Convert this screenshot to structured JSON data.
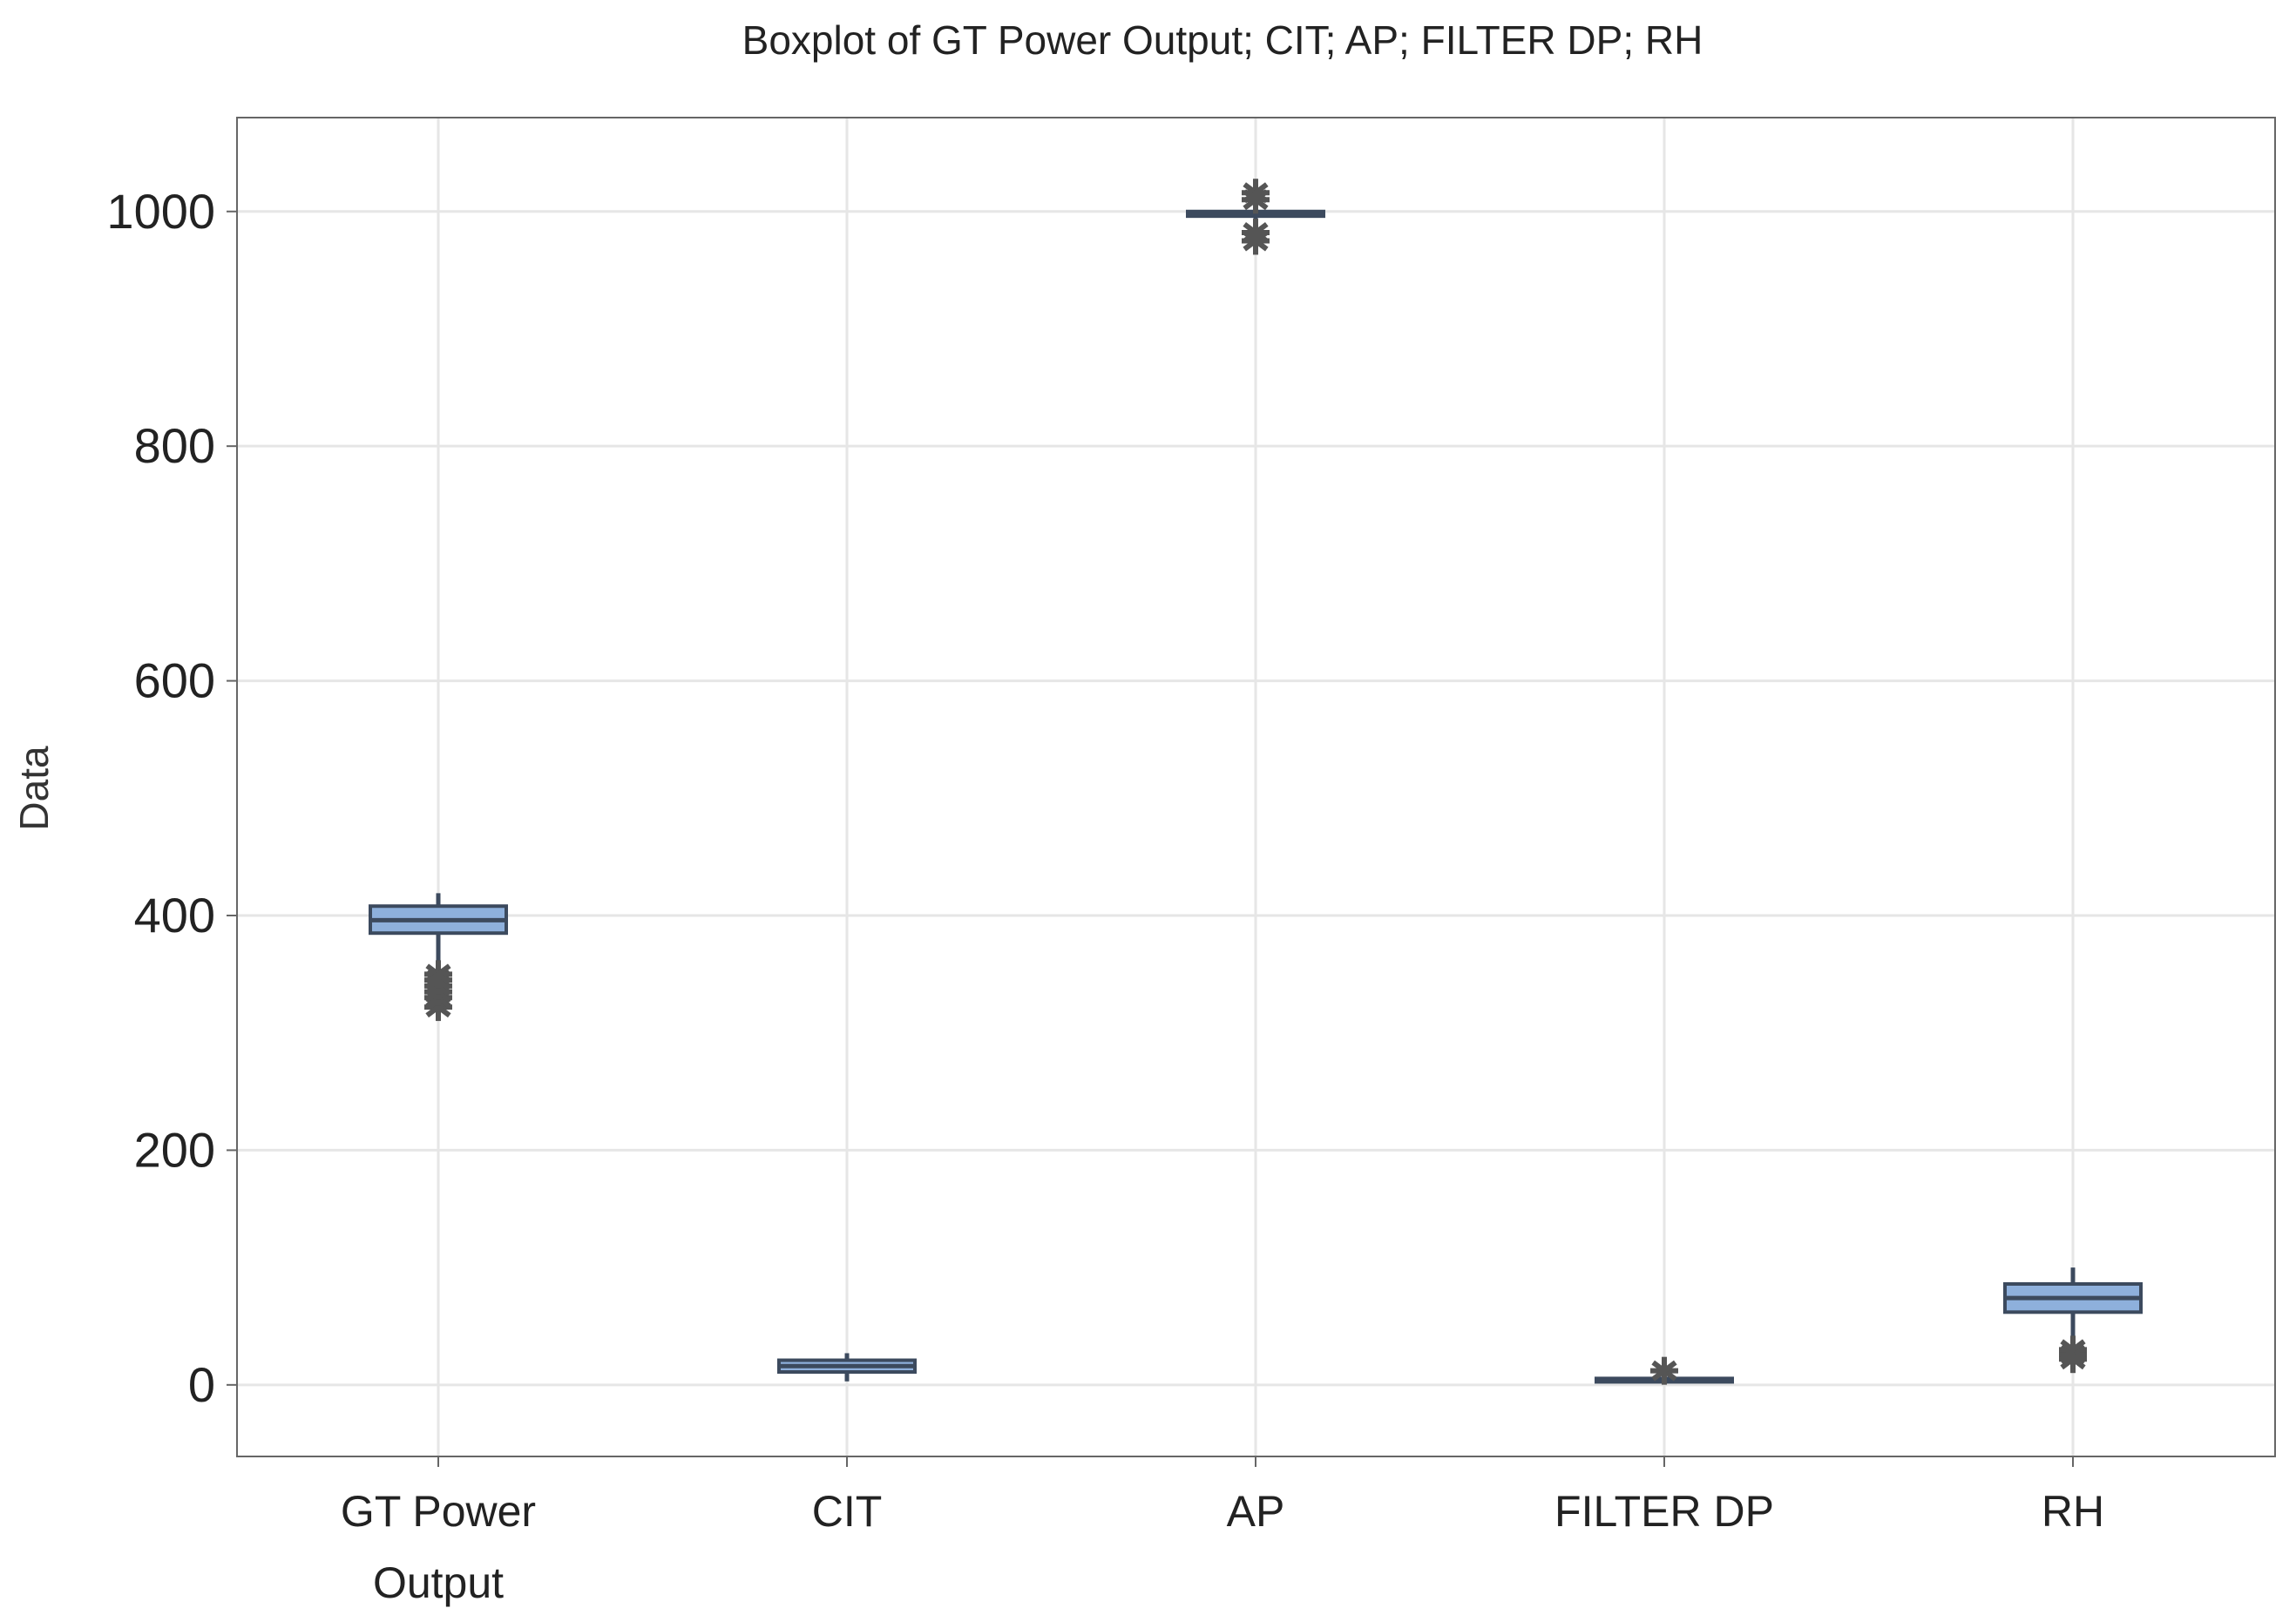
{
  "chart_data": {
    "type": "box",
    "title": "Boxplot of GT Power Output; CIT; AP; FILTER DP; RH",
    "xlabel": "",
    "ylabel": "Data",
    "ylim": [
      -61,
      1080
    ],
    "yticks": [
      0,
      200,
      400,
      600,
      800,
      1000
    ],
    "grid": true,
    "categories": [
      [
        "GT Power",
        "Output"
      ],
      [
        "CIT"
      ],
      [
        "AP"
      ],
      [
        "FILTER DP"
      ],
      [
        "RH"
      ]
    ],
    "series": [
      {
        "name": "GT Power Output",
        "whisker_low": 352,
        "q1": 385,
        "median": 396,
        "q3": 408,
        "whisker_high": 419,
        "outliers": [
          322,
          330,
          335,
          340,
          345,
          350
        ]
      },
      {
        "name": "CIT",
        "whisker_low": 3,
        "q1": 11,
        "median": 16,
        "q3": 21,
        "whisker_high": 27,
        "outliers": []
      },
      {
        "name": "AP",
        "whisker_low": 990,
        "q1": 996,
        "median": 998,
        "q3": 1000,
        "whisker_high": 1005,
        "outliers": [
          975,
          982,
          1010,
          1016
        ]
      },
      {
        "name": "FILTER DP",
        "whisker_low": 4,
        "q1": 4.5,
        "median": 5,
        "q3": 5.5,
        "whisker_high": 6,
        "outliers": [
          12
        ]
      },
      {
        "name": "RH",
        "whisker_low": 39,
        "q1": 62,
        "median": 74,
        "q3": 86,
        "whisker_high": 100,
        "outliers": [
          22,
          26,
          30
        ]
      }
    ],
    "colors": {
      "box_fill": "#8eb0dc",
      "box_edge": "#3c4a5e",
      "outlier": "#555555",
      "grid": "#e6e6e6"
    }
  }
}
